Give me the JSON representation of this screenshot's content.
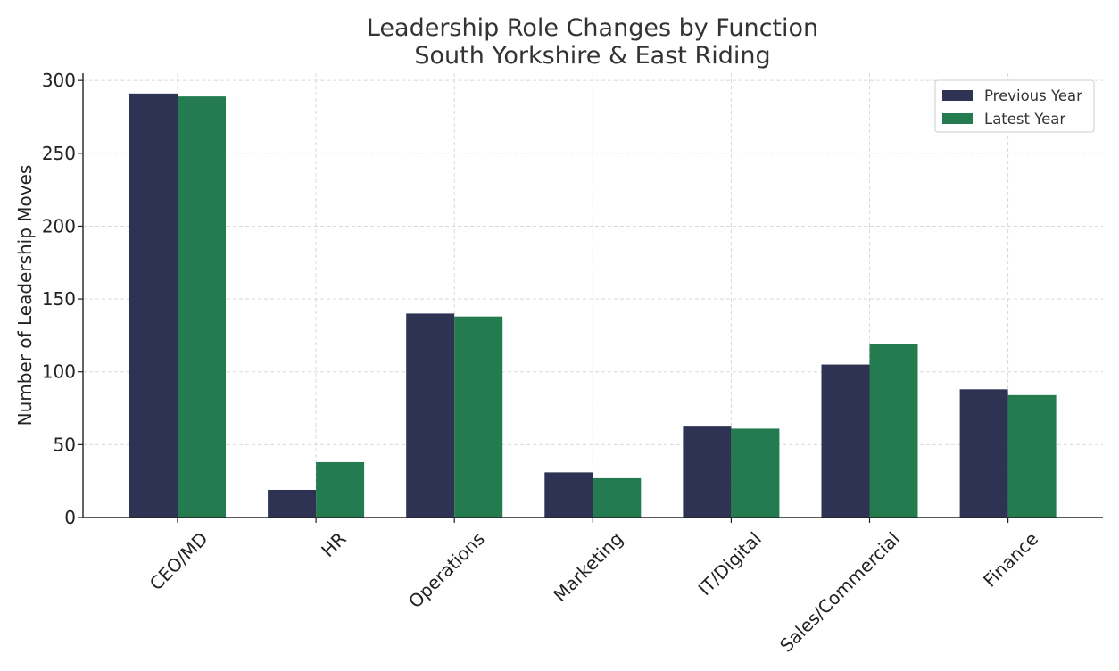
{
  "chart_data": {
    "type": "bar",
    "title": "Leadership Role Changes by Function",
    "subtitle": "South Yorkshire & East Riding",
    "xlabel": "",
    "ylabel": "Number of Leadership Moves",
    "categories": [
      "CEO/MD",
      "HR",
      "Operations",
      "Marketing",
      "IT/Digital",
      "Sales/Commercial",
      "Finance"
    ],
    "series": [
      {
        "name": "Previous Year",
        "color": "#2e3353",
        "values": [
          291,
          19,
          140,
          31,
          63,
          105,
          88
        ]
      },
      {
        "name": "Latest Year",
        "color": "#237b4f",
        "values": [
          289,
          38,
          138,
          27,
          61,
          119,
          84
        ]
      }
    ],
    "ylim": [
      0,
      305
    ],
    "yticks": [
      0,
      50,
      100,
      150,
      200,
      250,
      300
    ],
    "grid": true,
    "legend_position": "top-right"
  }
}
